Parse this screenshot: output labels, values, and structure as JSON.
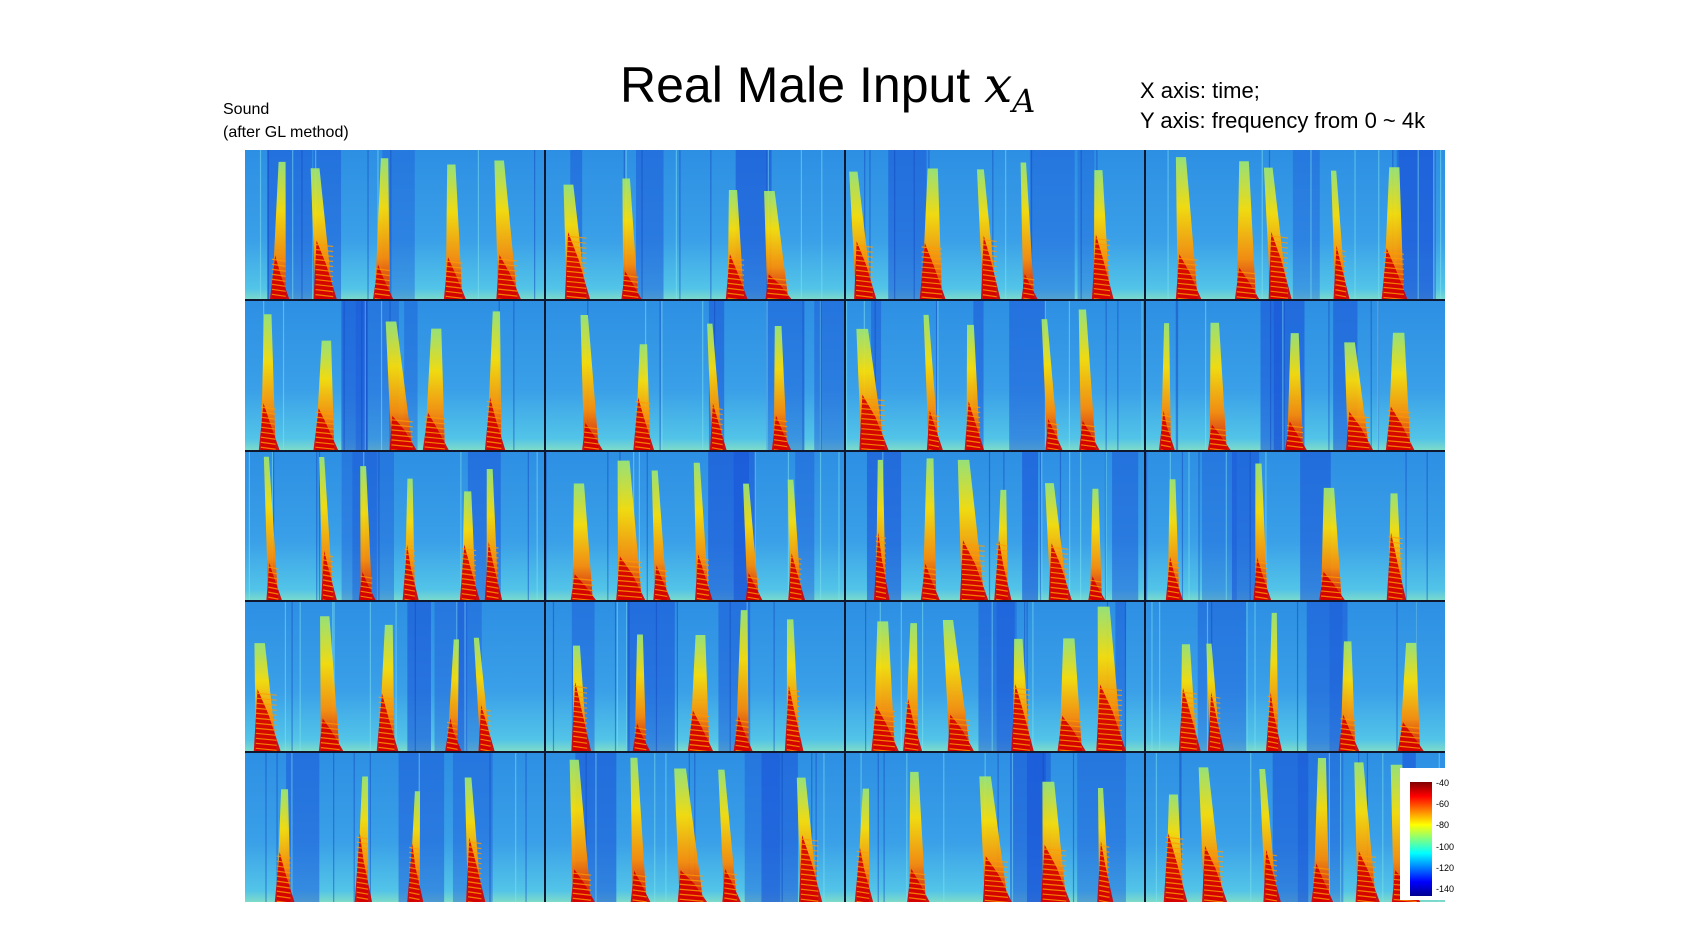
{
  "title": {
    "text": "Real Male Input ",
    "variable": "x",
    "subscript": "A"
  },
  "axis_note": {
    "line1": "X axis: time;",
    "line2": "Y axis: frequency from 0 ~ 4k"
  },
  "sound_label": {
    "line1": "Sound",
    "line2": "(after GL method)"
  },
  "grid": {
    "rows": 5,
    "cols": 4,
    "content": "spectrogram"
  },
  "colorbar": {
    "ticks": [
      "-40",
      "-60",
      "-80",
      "-100",
      "-120",
      "-140"
    ],
    "colormap": "jet"
  },
  "colors": {
    "background_blue": "#2a8fe0",
    "hot": "#d40000",
    "mid": "#ffe000",
    "gridline": "#101830"
  }
}
